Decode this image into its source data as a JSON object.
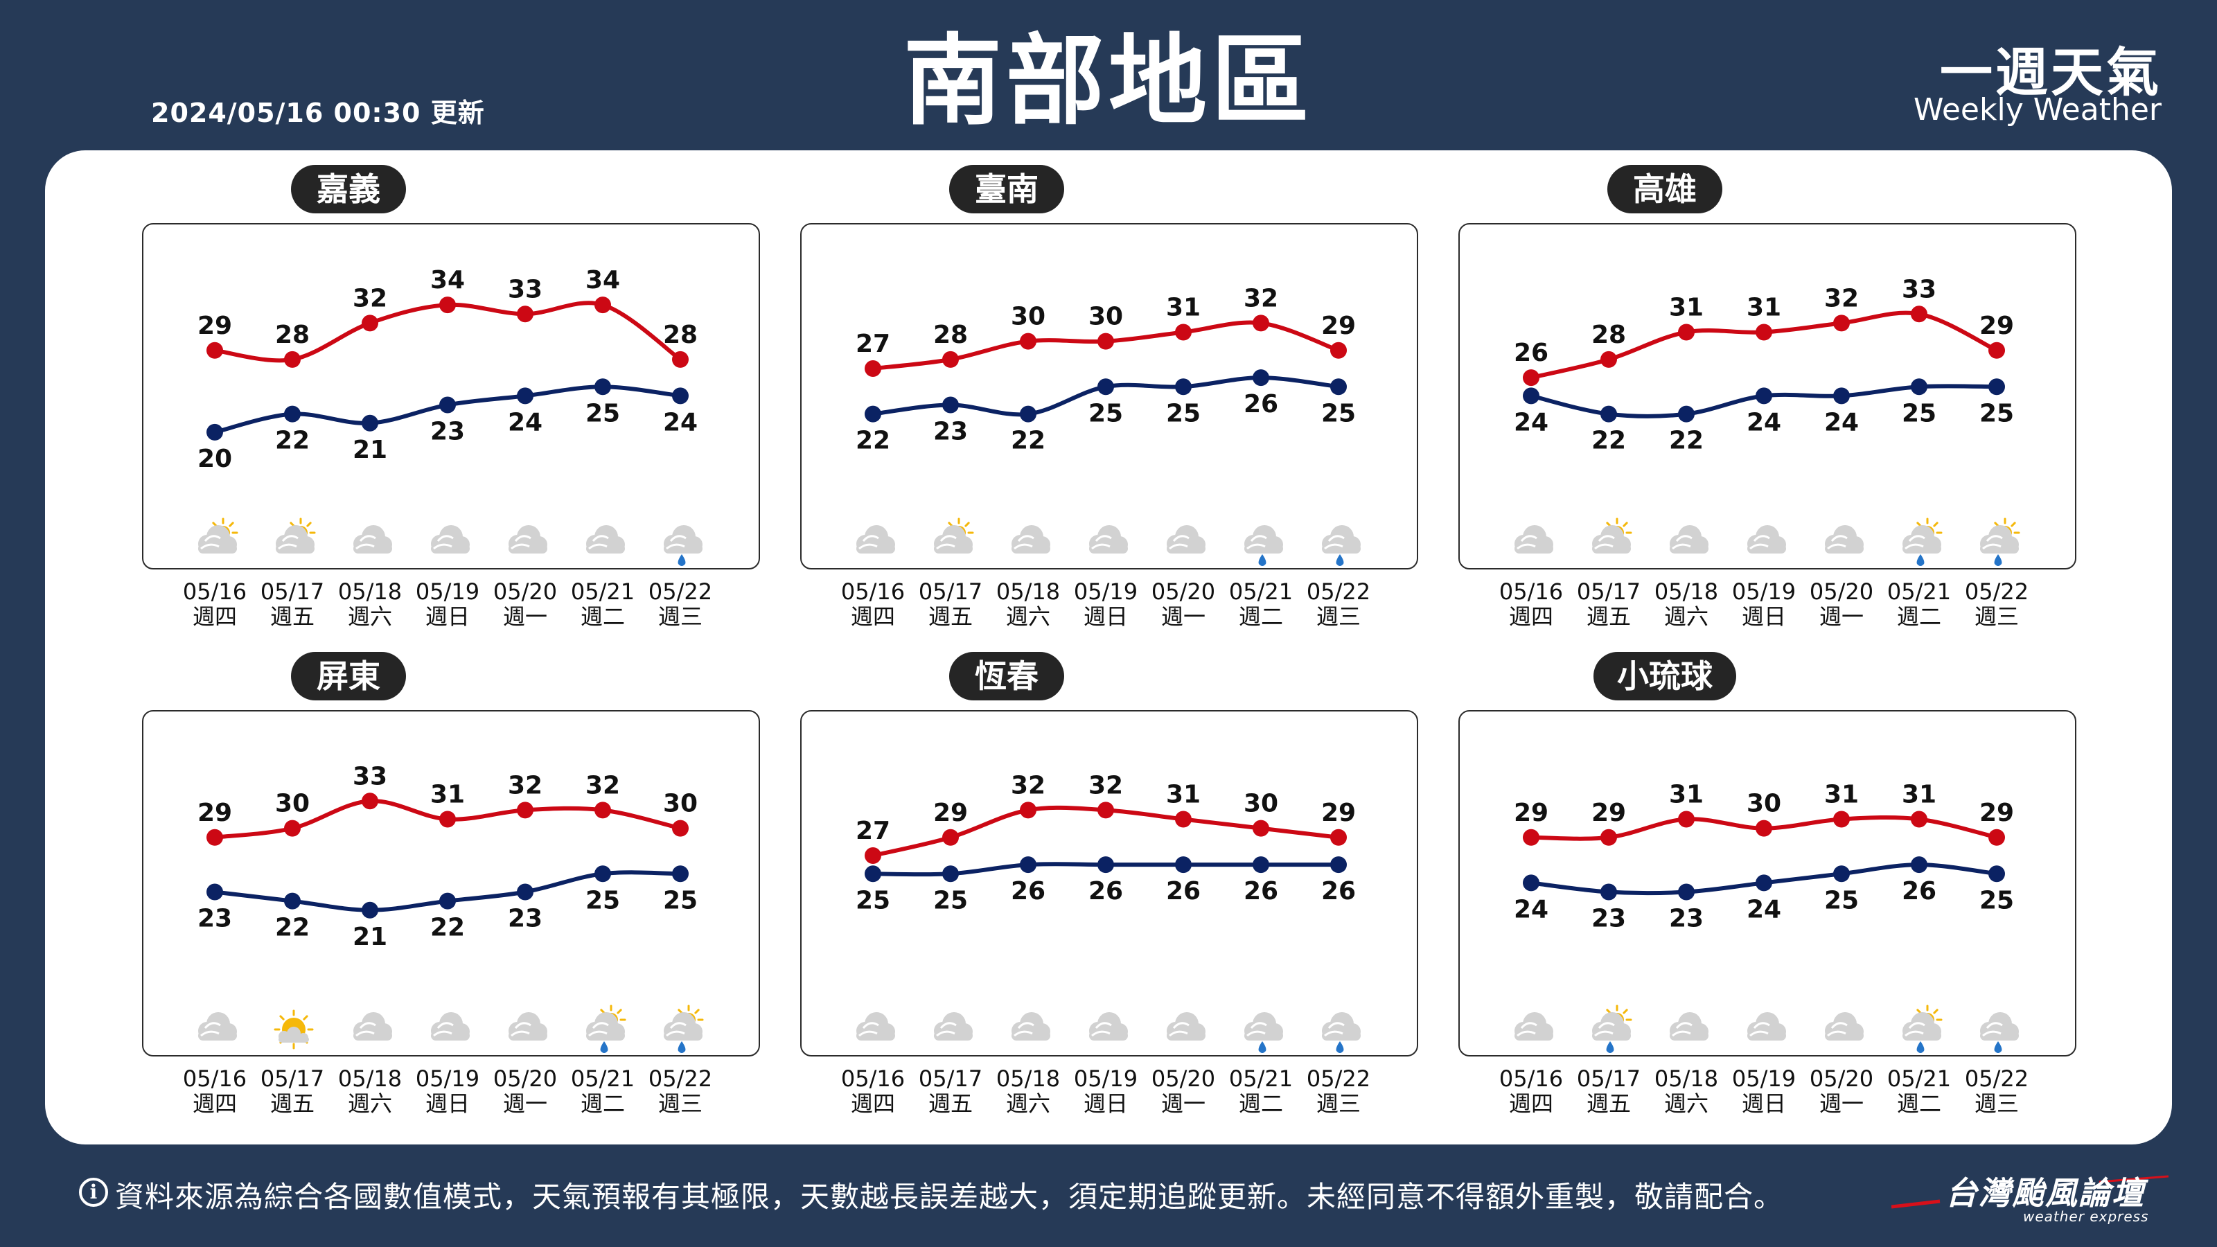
{
  "header": {
    "update_time": "2024/05/16 00:30 更新",
    "title": "南部地區",
    "brand_zh": "一週天氣",
    "brand_en": "Weekly Weather"
  },
  "colors": {
    "high": "#cc0814",
    "low": "#0b2263",
    "background": "#263a57"
  },
  "footer": {
    "info_icon": "i",
    "disclaimer": "資料來源為綜合各國數值模式，天氣預報有其極限，天數越長誤差越大，須定期追蹤更新。未經同意不得額外重製，敬請配合。",
    "logo_text": "台灣颱風論壇",
    "logo_sub": "weather express"
  },
  "chart_data": [
    {
      "type": "line",
      "title": "嘉義",
      "dates": [
        "05/16",
        "05/17",
        "05/18",
        "05/19",
        "05/20",
        "05/21",
        "05/22"
      ],
      "weekdays": [
        "週四",
        "週五",
        "週六",
        "週日",
        "週一",
        "週二",
        "週三"
      ],
      "series": [
        {
          "values": [
            29,
            28,
            32,
            34,
            33,
            34,
            28
          ]
        },
        {
          "values": [
            20,
            22,
            21,
            23,
            24,
            25,
            24
          ]
        }
      ],
      "icons": [
        "partly-cloudy-icon",
        "partly-cloudy-icon",
        "cloudy-icon",
        "cloudy-icon",
        "cloudy-icon",
        "cloudy-icon",
        "rain-icon"
      ]
    },
    {
      "type": "line",
      "title": "臺南",
      "dates": [
        "05/16",
        "05/17",
        "05/18",
        "05/19",
        "05/20",
        "05/21",
        "05/22"
      ],
      "weekdays": [
        "週四",
        "週五",
        "週六",
        "週日",
        "週一",
        "週二",
        "週三"
      ],
      "series": [
        {
          "values": [
            27,
            28,
            30,
            30,
            31,
            32,
            29
          ]
        },
        {
          "values": [
            22,
            23,
            22,
            25,
            25,
            26,
            25
          ]
        }
      ],
      "icons": [
        "cloudy-icon",
        "partly-cloudy-icon",
        "cloudy-icon",
        "cloudy-icon",
        "cloudy-icon",
        "rain-icon",
        "rain-icon"
      ]
    },
    {
      "type": "line",
      "title": "高雄",
      "dates": [
        "05/16",
        "05/17",
        "05/18",
        "05/19",
        "05/20",
        "05/21",
        "05/22"
      ],
      "weekdays": [
        "週四",
        "週五",
        "週六",
        "週日",
        "週一",
        "週二",
        "週三"
      ],
      "series": [
        {
          "values": [
            26,
            28,
            31,
            31,
            32,
            33,
            29
          ]
        },
        {
          "values": [
            24,
            22,
            22,
            24,
            24,
            25,
            25
          ]
        }
      ],
      "icons": [
        "cloudy-icon",
        "partly-cloudy-icon",
        "cloudy-icon",
        "cloudy-icon",
        "cloudy-icon",
        "sun-rain-icon",
        "sun-rain-icon"
      ]
    },
    {
      "type": "line",
      "title": "屏東",
      "dates": [
        "05/16",
        "05/17",
        "05/18",
        "05/19",
        "05/20",
        "05/21",
        "05/22"
      ],
      "weekdays": [
        "週四",
        "週五",
        "週六",
        "週日",
        "週一",
        "週二",
        "週三"
      ],
      "series": [
        {
          "values": [
            29,
            30,
            33,
            31,
            32,
            32,
            30
          ]
        },
        {
          "values": [
            23,
            22,
            21,
            22,
            23,
            25,
            25
          ]
        }
      ],
      "icons": [
        "cloudy-icon",
        "sunny-icon",
        "cloudy-icon",
        "cloudy-icon",
        "cloudy-icon",
        "sun-rain-icon",
        "sun-rain-icon"
      ]
    },
    {
      "type": "line",
      "title": "恆春",
      "dates": [
        "05/16",
        "05/17",
        "05/18",
        "05/19",
        "05/20",
        "05/21",
        "05/22"
      ],
      "weekdays": [
        "週四",
        "週五",
        "週六",
        "週日",
        "週一",
        "週二",
        "週三"
      ],
      "series": [
        {
          "values": [
            27,
            29,
            32,
            32,
            31,
            30,
            29
          ]
        },
        {
          "values": [
            25,
            25,
            26,
            26,
            26,
            26,
            26
          ]
        }
      ],
      "icons": [
        "cloudy-icon",
        "cloudy-icon",
        "cloudy-icon",
        "cloudy-icon",
        "cloudy-icon",
        "rain-icon",
        "rain-icon"
      ]
    },
    {
      "type": "line",
      "title": "小琉球",
      "dates": [
        "05/16",
        "05/17",
        "05/18",
        "05/19",
        "05/20",
        "05/21",
        "05/22"
      ],
      "weekdays": [
        "週四",
        "週五",
        "週六",
        "週日",
        "週一",
        "週二",
        "週三"
      ],
      "series": [
        {
          "values": [
            29,
            29,
            31,
            30,
            31,
            31,
            29
          ]
        },
        {
          "values": [
            24,
            23,
            23,
            24,
            25,
            26,
            25
          ]
        }
      ],
      "icons": [
        "cloudy-icon",
        "sun-rain-icon",
        "cloudy-icon",
        "cloudy-icon",
        "cloudy-icon",
        "sun-rain-icon",
        "rain-icon"
      ]
    }
  ]
}
